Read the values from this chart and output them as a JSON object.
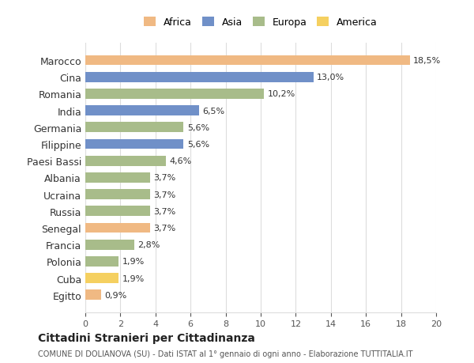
{
  "countries": [
    "Marocco",
    "Cina",
    "Romania",
    "India",
    "Germania",
    "Filippine",
    "Paesi Bassi",
    "Albania",
    "Ucraina",
    "Russia",
    "Senegal",
    "Francia",
    "Polonia",
    "Cuba",
    "Egitto"
  ],
  "values": [
    18.5,
    13.0,
    10.2,
    6.5,
    5.6,
    5.6,
    4.6,
    3.7,
    3.7,
    3.7,
    3.7,
    2.8,
    1.9,
    1.9,
    0.9
  ],
  "labels": [
    "18,5%",
    "13,0%",
    "10,2%",
    "6,5%",
    "5,6%",
    "5,6%",
    "4,6%",
    "3,7%",
    "3,7%",
    "3,7%",
    "3,7%",
    "2,8%",
    "1,9%",
    "1,9%",
    "0,9%"
  ],
  "colors": [
    "#f0b983",
    "#7090c8",
    "#a8bc8a",
    "#7090c8",
    "#a8bc8a",
    "#7090c8",
    "#a8bc8a",
    "#a8bc8a",
    "#a8bc8a",
    "#a8bc8a",
    "#f0b983",
    "#a8bc8a",
    "#a8bc8a",
    "#f5d060",
    "#f0b983"
  ],
  "legend_labels": [
    "Africa",
    "Asia",
    "Europa",
    "America"
  ],
  "legend_colors": [
    "#f0b983",
    "#7090c8",
    "#a8bc8a",
    "#f5d060"
  ],
  "title": "Cittadini Stranieri per Cittadinanza",
  "subtitle": "COMUNE DI DOLIANOVA (SU) - Dati ISTAT al 1° gennaio di ogni anno - Elaborazione TUTTITALIA.IT",
  "xlim": [
    0,
    20
  ],
  "xticks": [
    0,
    2,
    4,
    6,
    8,
    10,
    12,
    14,
    16,
    18,
    20
  ],
  "bg_color": "#ffffff",
  "grid_color": "#dddddd"
}
